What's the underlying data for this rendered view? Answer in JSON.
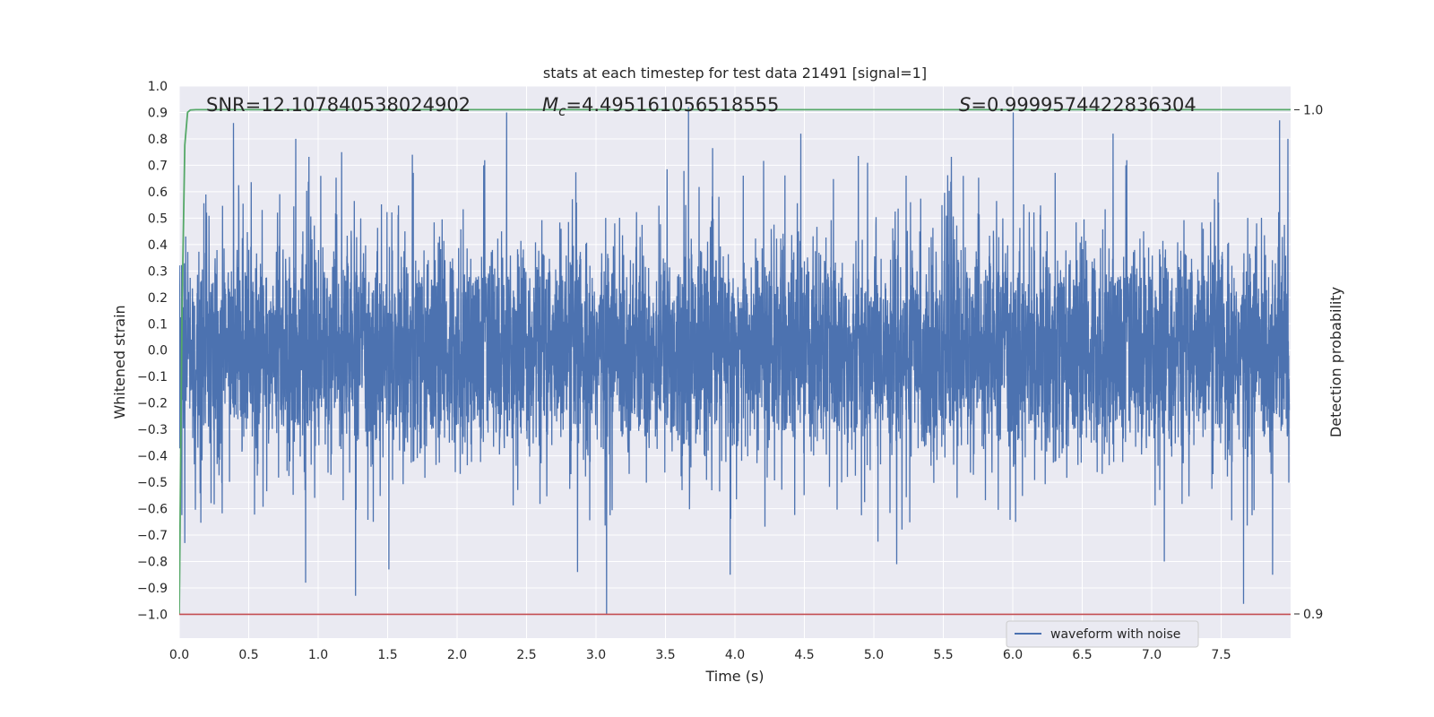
{
  "chart_data": {
    "type": "line",
    "title": "stats at each timestep for test data 21491 [signal=1]",
    "xlabel": "Time (s)",
    "ylabel": "Whitened strain",
    "y2label": "Detection probability",
    "xlim": [
      0.0,
      8.0
    ],
    "ylim": [
      -1.09,
      1.0
    ],
    "y2lim": [
      0.8952,
      1.0047
    ],
    "grid": true,
    "legend_position": "lower-right",
    "x_ticks": [
      "0.0",
      "0.5",
      "1.0",
      "1.5",
      "2.0",
      "2.5",
      "3.0",
      "3.5",
      "4.0",
      "4.5",
      "5.0",
      "5.5",
      "6.0",
      "6.5",
      "7.0",
      "7.5"
    ],
    "y_ticks": [
      "1.0",
      "0.9",
      "0.8",
      "0.7",
      "0.6",
      "0.5",
      "0.4",
      "0.3",
      "0.2",
      "0.1",
      "0.0",
      "−0.1",
      "−0.2",
      "−0.3",
      "−0.4",
      "−0.5",
      "−0.6",
      "−0.7",
      "−0.8",
      "−0.9",
      "−1.0"
    ],
    "y2_ticks": [
      "1.0",
      "0.9"
    ],
    "annotations": {
      "snr": "SNR=12.107840538024902",
      "mc_symbol": "M",
      "mc_sub": "c",
      "mc_value": "=4.495161056518555",
      "s_symbol": "S",
      "s_value": "=0.9999574422836304"
    },
    "series": [
      {
        "name": "waveform with noise",
        "color": "#4c72b0",
        "description_values": "dense whitened strain noise, sampled 0–8 s, amplitude mostly within ±0.5 with spikes to ±1.0",
        "spikes": [
          {
            "x": 0.39,
            "y": 0.86
          },
          {
            "x": 0.84,
            "y": 0.8
          },
          {
            "x": 1.17,
            "y": 0.75
          },
          {
            "x": 1.68,
            "y": 0.74
          },
          {
            "x": 2.36,
            "y": 0.9
          },
          {
            "x": 3.67,
            "y": 0.92
          },
          {
            "x": 4.48,
            "y": 0.82
          },
          {
            "x": 6.01,
            "y": 0.9
          },
          {
            "x": 6.73,
            "y": 0.82
          },
          {
            "x": 7.93,
            "y": 0.87
          },
          {
            "x": 7.99,
            "y": 0.8
          },
          {
            "x": 0.91,
            "y": -0.88
          },
          {
            "x": 1.27,
            "y": -0.93
          },
          {
            "x": 1.51,
            "y": -0.83
          },
          {
            "x": 2.87,
            "y": -0.84
          },
          {
            "x": 3.08,
            "y": -1.0
          },
          {
            "x": 3.97,
            "y": -0.85
          },
          {
            "x": 5.17,
            "y": -0.81
          },
          {
            "x": 7.67,
            "y": -0.96
          },
          {
            "x": 7.88,
            "y": -0.85
          },
          {
            "x": 0.04,
            "y": -0.73
          },
          {
            "x": 7.1,
            "y": -0.8
          }
        ]
      },
      {
        "name": "",
        "color": "#55a868",
        "axis": "right",
        "x": [
          0.0,
          0.02,
          0.04,
          0.06,
          0.08,
          0.12,
          8.0
        ],
        "values": [
          0.9,
          0.96,
          0.993,
          0.9995,
          0.99995,
          1.0,
          1.0
        ]
      },
      {
        "name": "",
        "color": "#c44e52",
        "axis": "left",
        "x": [
          0.0,
          8.0
        ],
        "values": [
          -1.0,
          -1.0
        ]
      }
    ]
  },
  "colors": {
    "plot_background": "#eaeaf2",
    "grid": "#ffffff",
    "waveform": "#4c72b0",
    "probability": "#55a868",
    "threshold": "#c44e52"
  }
}
